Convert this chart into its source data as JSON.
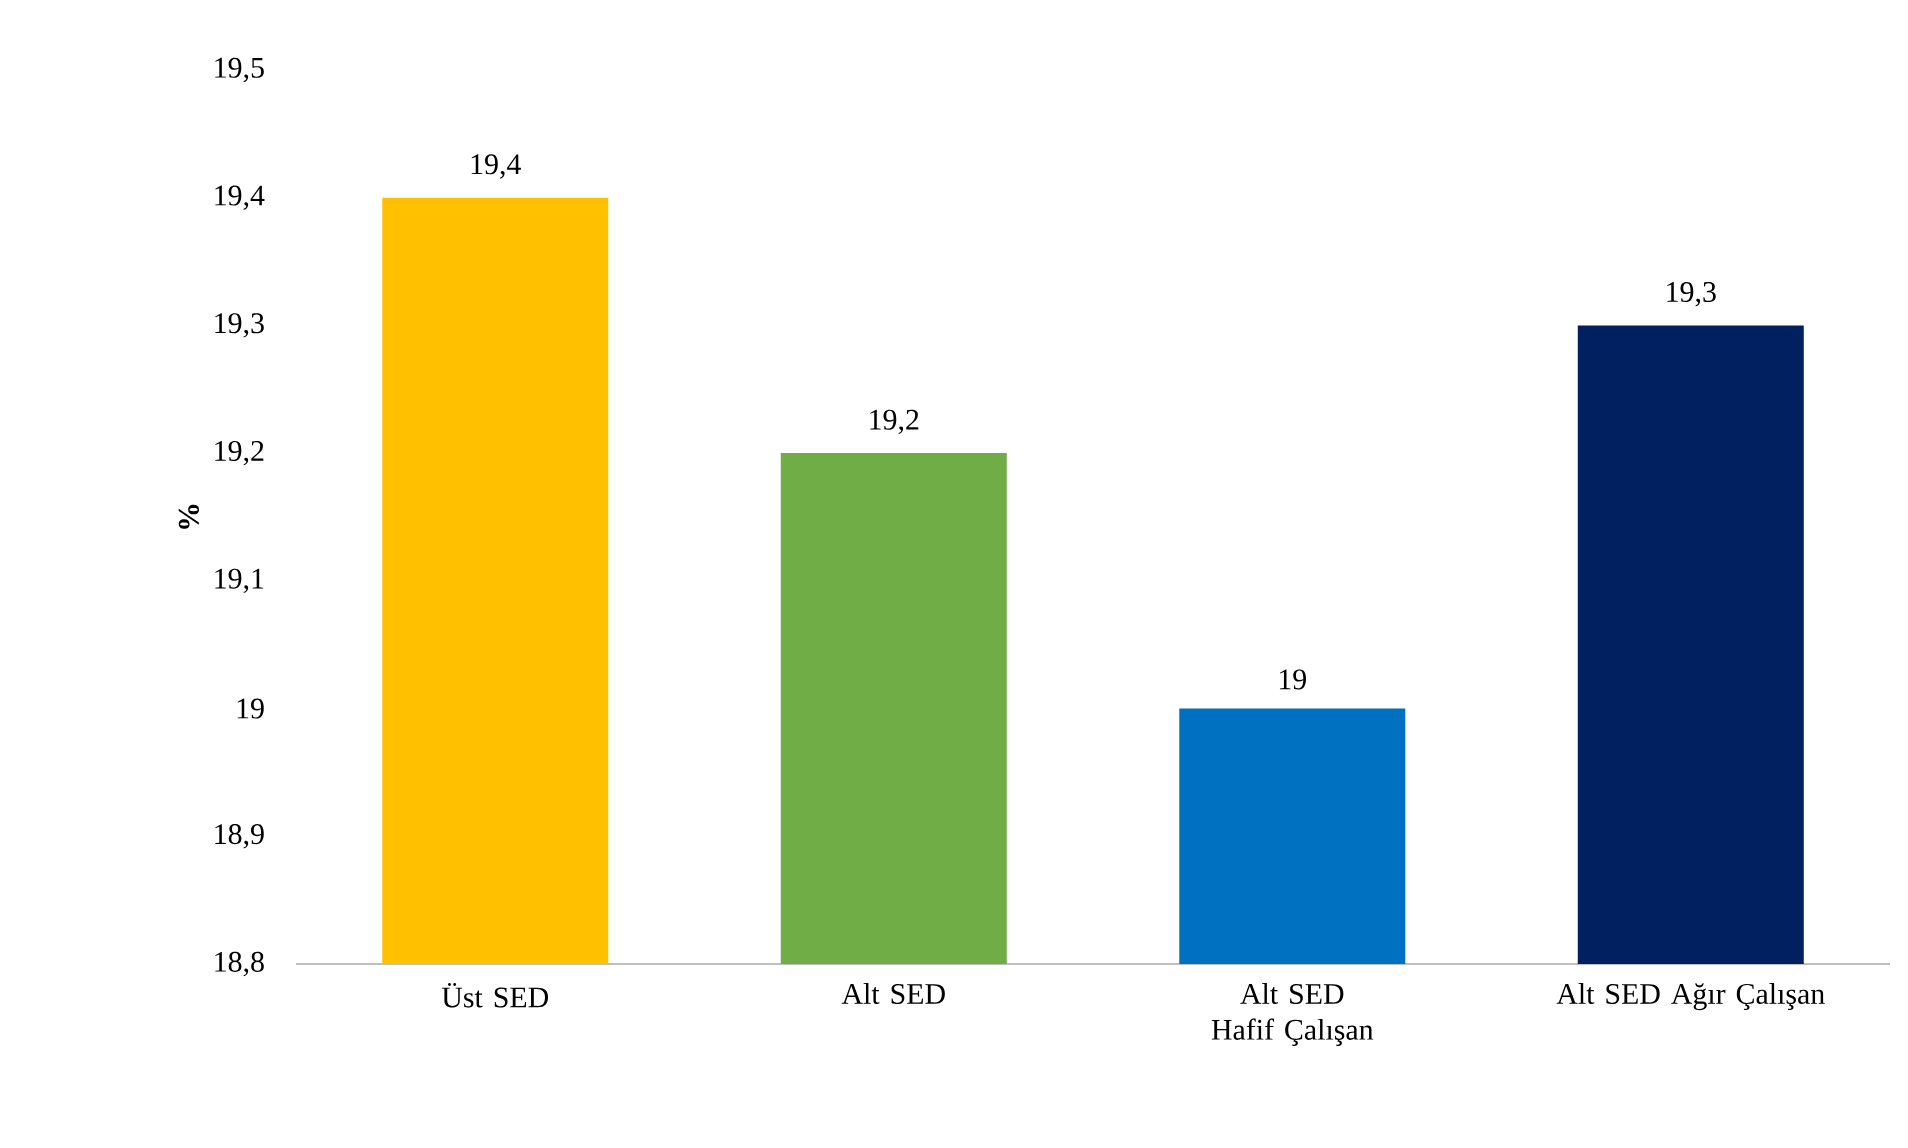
{
  "chart_data": {
    "type": "bar",
    "ylabel": "%",
    "categories": [
      "Üst SED",
      "Alt SED",
      "Alt SED Hafif Çalışan",
      "Alt SED Ağır Çalışan"
    ],
    "values": [
      19.4,
      19.2,
      19,
      19.3
    ],
    "colors": [
      "#ffc000",
      "#70ad47",
      "#0070c0",
      "#002060"
    ],
    "value_labels": [
      "19,4",
      "19,2",
      "19",
      "19,3"
    ],
    "ylim": [
      18.8,
      19.5
    ],
    "yticks": [
      {
        "value": 18.8,
        "label": "18,8"
      },
      {
        "value": 18.9,
        "label": "18,9"
      },
      {
        "value": 19,
        "label": "19"
      },
      {
        "value": 19.1,
        "label": "19,1"
      },
      {
        "value": 19.2,
        "label": "19,2"
      },
      {
        "value": 19.3,
        "label": "19,3"
      },
      {
        "value": 19.4,
        "label": "19,4"
      },
      {
        "value": 19.5,
        "label": "19,5"
      }
    ],
    "grid": false
  }
}
